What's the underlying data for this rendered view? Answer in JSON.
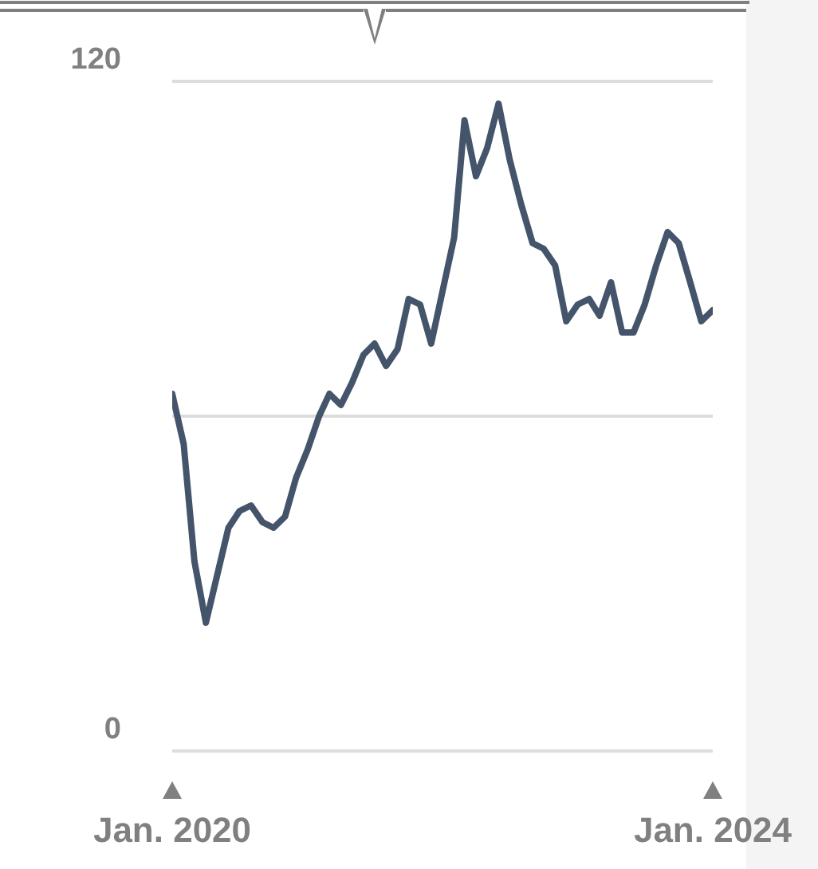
{
  "chart_data": {
    "type": "line",
    "color": "#44546a",
    "x": [
      "2020-01",
      "2020-02",
      "2020-03",
      "2020-04",
      "2020-06",
      "2020-07",
      "2020-08",
      "2020-09",
      "2020-10",
      "2020-11",
      "2020-12",
      "2021-01",
      "2021-02",
      "2021-03",
      "2021-04",
      "2021-05",
      "2021-06",
      "2021-07",
      "2021-08",
      "2021-09",
      "2021-10",
      "2021-11",
      "2021-12",
      "2022-02",
      "2022-03",
      "2022-04",
      "2022-05",
      "2022-06",
      "2022-07",
      "2022-08",
      "2022-09",
      "2022-10",
      "2022-11",
      "2022-12",
      "2023-01",
      "2023-02",
      "2023-03",
      "2023-04",
      "2023-05",
      "2023-06",
      "2023-07",
      "2023-08",
      "2023-09",
      "2023-10",
      "2023-11",
      "2023-12",
      "2024-01"
    ],
    "values": [
      64,
      55,
      34,
      23,
      40,
      43,
      44,
      41,
      40,
      42,
      49,
      54,
      60,
      64,
      62,
      66,
      71,
      73,
      69,
      72,
      81,
      80,
      73,
      92,
      113,
      103,
      108,
      116,
      106,
      98,
      91,
      90,
      87,
      77,
      80,
      81,
      78,
      84,
      75,
      75,
      80,
      87,
      93,
      91,
      84,
      77,
      79
    ],
    "xlim": [
      "2020-01",
      "2024-01"
    ],
    "xticks": [
      {
        "value": "2020-01",
        "label": "Jan. 2020"
      },
      {
        "value": "2024-01",
        "label": "Jan. 2024"
      }
    ],
    "ylim": [
      0,
      120
    ],
    "yticks": [
      0,
      {
        "value": 60,
        "label": null
      },
      120
    ],
    "grid": "y"
  }
}
